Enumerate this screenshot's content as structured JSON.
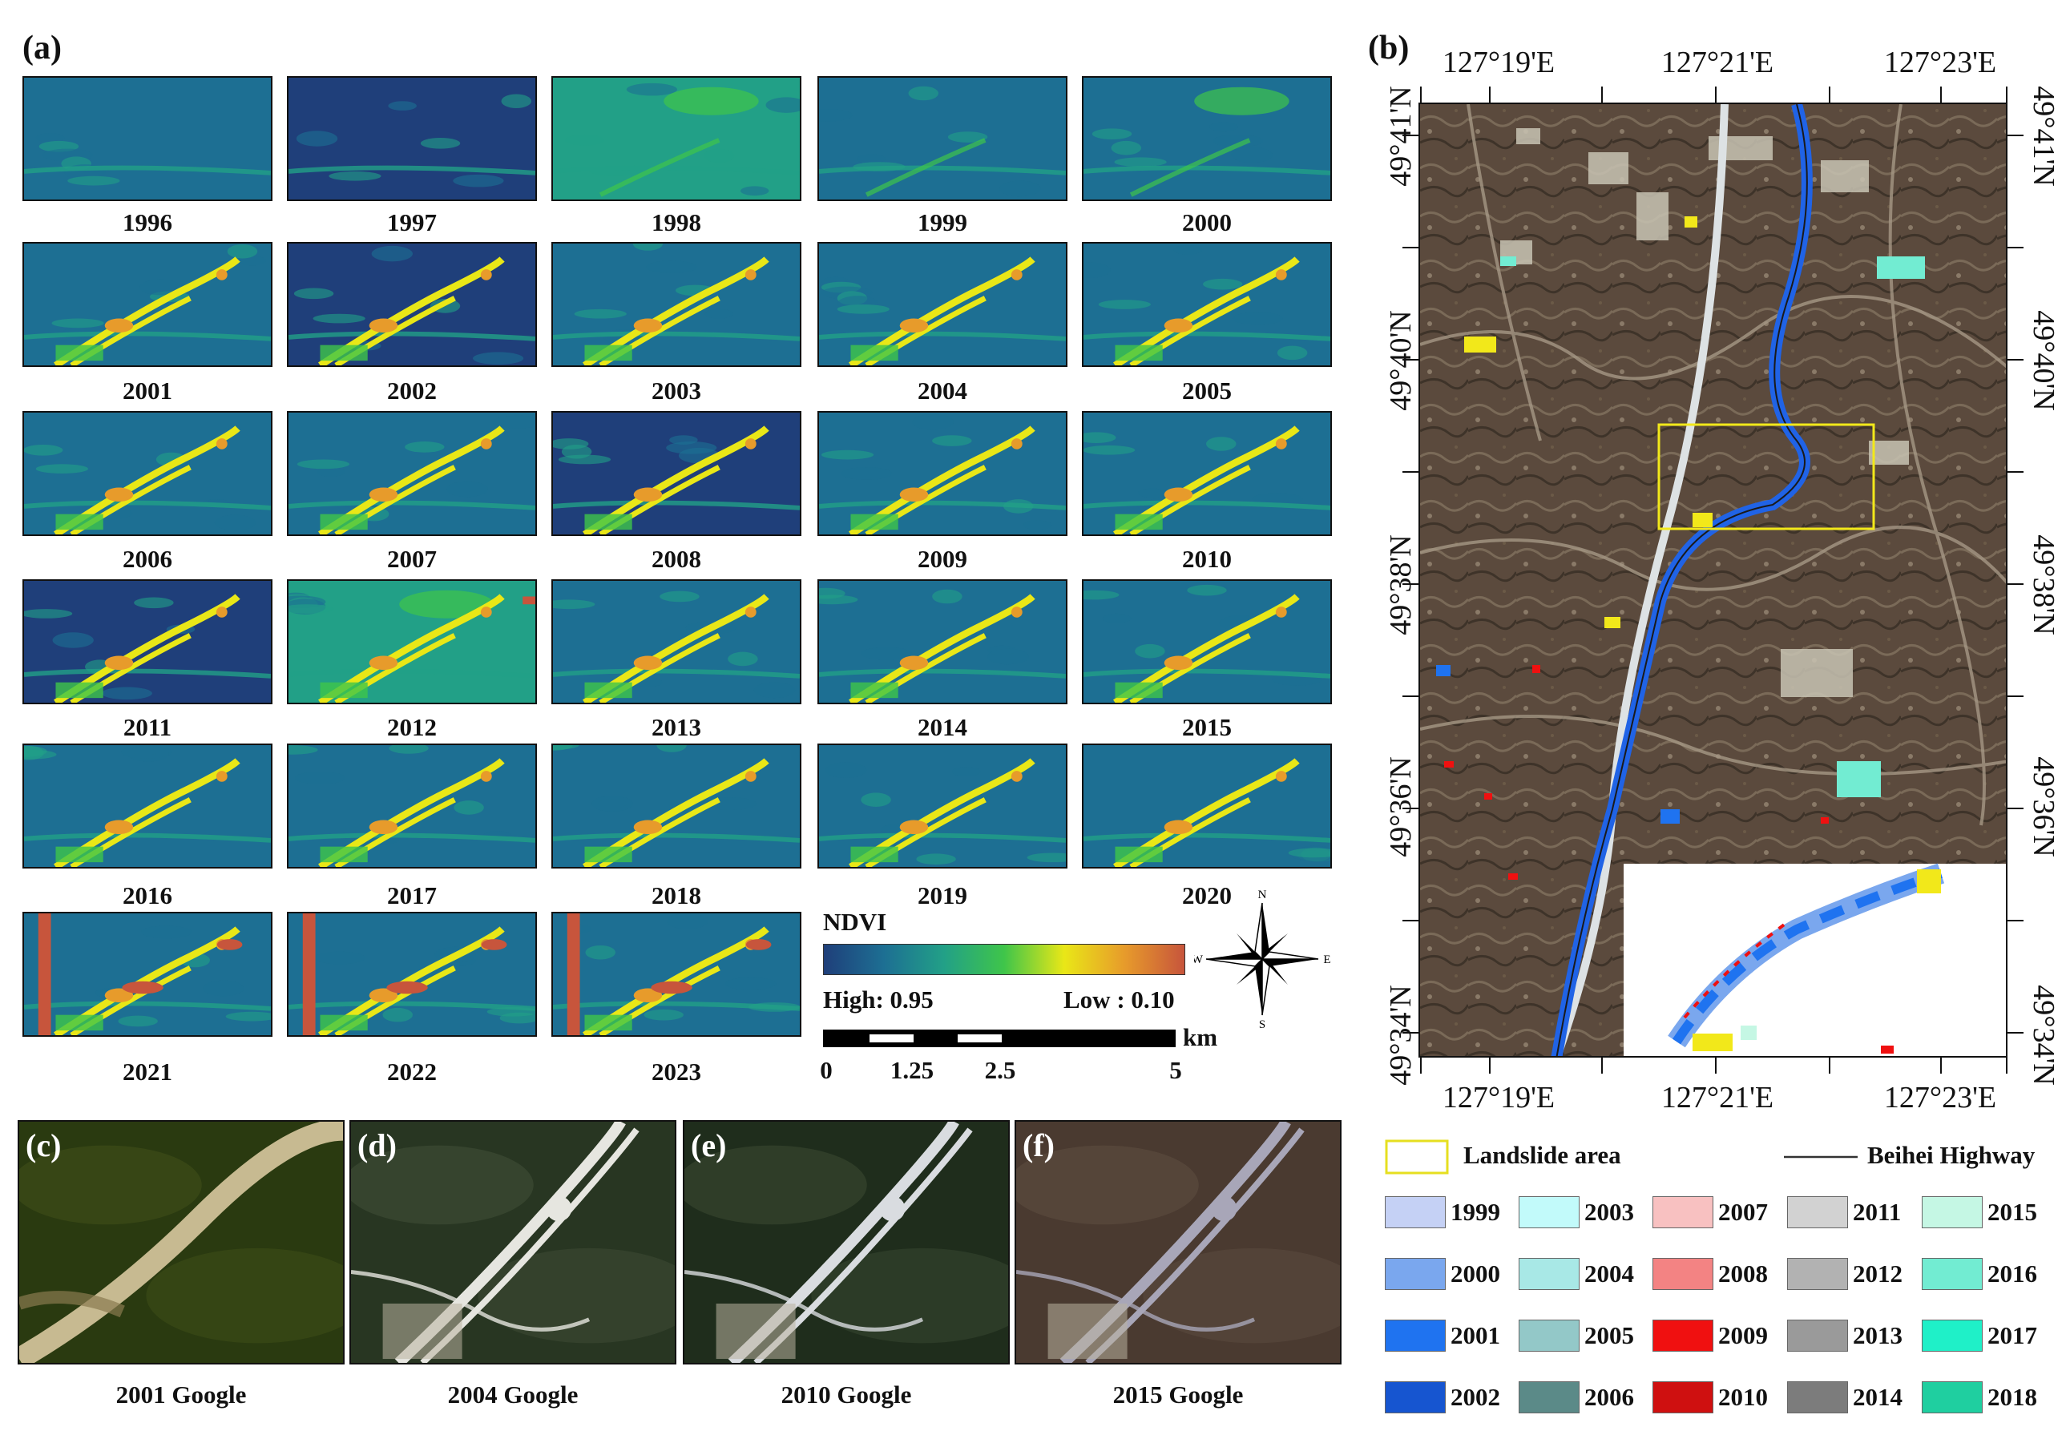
{
  "panels": {
    "a": "(a)",
    "b": "(b)",
    "c": "(c)",
    "d": "(d)",
    "e": "(e)",
    "f": "(f)"
  },
  "ndvi_panel": {
    "years": [
      "1996",
      "1997",
      "1998",
      "1999",
      "2000",
      "2001",
      "2002",
      "2003",
      "2004",
      "2005",
      "2006",
      "2007",
      "2008",
      "2009",
      "2010",
      "2011",
      "2012",
      "2013",
      "2014",
      "2015",
      "2016",
      "2017",
      "2018",
      "2019",
      "2020",
      "2021",
      "2022",
      "2023"
    ],
    "colorbar_title": "NDVI",
    "high_label": "High: 0.95",
    "low_label": "Low : 0.10",
    "colors": [
      "#1f3f7a",
      "#1d6f93",
      "#22a087",
      "#3fc54a",
      "#e9e717",
      "#e79b2b",
      "#c7553c"
    ]
  },
  "scale_bar": {
    "unit": "km",
    "ticks": [
      "0",
      "1.25",
      "2.5",
      "5"
    ]
  },
  "compass": {
    "n": "N",
    "s": "S",
    "e": "E",
    "w": "W"
  },
  "map": {
    "lon_labels": [
      "127°19'E",
      "127°21'E",
      "127°23'E"
    ],
    "lat_labels": [
      "49°41'N",
      "49°40'N",
      "49°38'N",
      "49°36'N",
      "49°34'N"
    ]
  },
  "photos": {
    "captions": [
      "2001 Google",
      "2004 Google",
      "2010 Google",
      "2015 Google"
    ]
  },
  "legend": {
    "landslide_label": "Landslide area",
    "highway_label": "Beihei Highway",
    "items": [
      {
        "year": "1999",
        "color": "#c5d1f5"
      },
      {
        "year": "2000",
        "color": "#7aa7ee"
      },
      {
        "year": "2001",
        "color": "#1f73f0"
      },
      {
        "year": "2002",
        "color": "#1655d0"
      },
      {
        "year": "2003",
        "color": "#c2fafa"
      },
      {
        "year": "2004",
        "color": "#a8e8e6"
      },
      {
        "year": "2005",
        "color": "#93c8c8"
      },
      {
        "year": "2006",
        "color": "#5b8a88"
      },
      {
        "year": "2007",
        "color": "#f8c1c1"
      },
      {
        "year": "2008",
        "color": "#f38383"
      },
      {
        "year": "2009",
        "color": "#f01010"
      },
      {
        "year": "2010",
        "color": "#cf1010"
      },
      {
        "year": "2011",
        "color": "#d2d2d2"
      },
      {
        "year": "2012",
        "color": "#b2b2b2"
      },
      {
        "year": "2013",
        "color": "#9a9a9a"
      },
      {
        "year": "2014",
        "color": "#7c7c7c"
      },
      {
        "year": "2015",
        "color": "#c5f7e4"
      },
      {
        "year": "2016",
        "color": "#72ecd2"
      },
      {
        "year": "2017",
        "color": "#1ff0c8"
      },
      {
        "year": "2018",
        "color": "#1fcfa0"
      }
    ]
  }
}
